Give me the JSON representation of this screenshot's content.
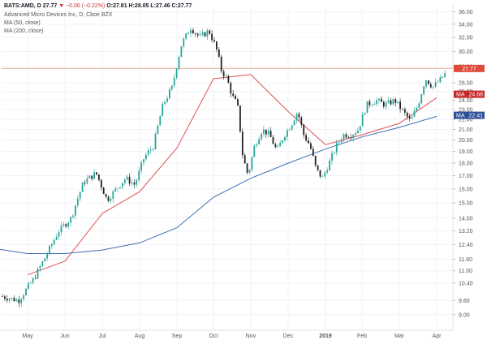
{
  "header": {
    "symbol": "BATS:AMD, D",
    "last": "27.77",
    "change": "▼ −0.06 (−0.22%)",
    "ohlc": "O:27.81  H:28.05  L:27.46  C:27.77",
    "description": "Advanced Micro Devices Inc, D, Cboe BZX",
    "ma_short_label": "MA (50, close)",
    "ma_long_label": "MA (200, close)"
  },
  "colors": {
    "up": "#26a69a",
    "down": "#222222",
    "ma50": "#e05050",
    "ma200": "#3f6db3",
    "price_line": "#e8b088",
    "last_tag": "#e04a3a",
    "ma50_tag": "#c62828",
    "ma200_tag": "#2f4f9a"
  },
  "chart_data": {
    "type": "candlestick",
    "x_tick_labels": [
      "May",
      "Jun",
      "Jul",
      "Aug",
      "Sep",
      "Oct",
      "Nov",
      "Dec",
      "2019",
      "Feb",
      "Mar",
      "Apr"
    ],
    "y_tick_labels": [
      "9.00",
      "9.60",
      "10.40",
      "11.00",
      "11.60",
      "12.40",
      "13.20",
      "14.00",
      "15.00",
      "16.00",
      "17.00",
      "18.00",
      "19.00",
      "20.00",
      "21.00",
      "22.00",
      "23.00",
      "24.00",
      "25.00",
      "26.00",
      "28.00",
      "30.00",
      "32.00",
      "34.00",
      "36.00"
    ],
    "ylim": [
      8.6,
      36.6
    ],
    "y_scale": "log",
    "last_price": 27.77,
    "last_price_label": "27.77",
    "ma_tags": [
      {
        "label": "MA",
        "value": 24.68,
        "value_label": "24.68",
        "series": "ma50"
      },
      {
        "label": "MA",
        "value": 22.41,
        "value_label": "22.41",
        "series": "ma200"
      }
    ],
    "price_path": [
      {
        "month": "Apr 2018",
        "price": 9.8
      },
      {
        "month": "Apr 2018",
        "price": 9.6
      },
      {
        "month": "May 2018",
        "price": 10.6
      },
      {
        "month": "May 2018",
        "price": 11.8
      },
      {
        "month": "May 2018",
        "price": 13.2
      },
      {
        "month": "Jun 2018",
        "price": 14.0
      },
      {
        "month": "Jun 2018",
        "price": 16.5
      },
      {
        "month": "Jun 2018",
        "price": 17.2
      },
      {
        "month": "Jul 2018",
        "price": 15.2
      },
      {
        "month": "Jul 2018",
        "price": 16.0
      },
      {
        "month": "Jul 2018",
        "price": 16.8
      },
      {
        "month": "Jul 2018",
        "price": 16.3
      },
      {
        "month": "Aug 2018",
        "price": 18.5
      },
      {
        "month": "Aug 2018",
        "price": 19.5
      },
      {
        "month": "Aug 2018",
        "price": 23.5
      },
      {
        "month": "Aug 2018",
        "price": 25.5
      },
      {
        "month": "Sep 2018",
        "price": 31.0
      },
      {
        "month": "Sep 2018",
        "price": 33.5
      },
      {
        "month": "Sep 2018",
        "price": 32.0
      },
      {
        "month": "Sep 2018",
        "price": 33.0
      },
      {
        "month": "Oct 2018",
        "price": 30.5
      },
      {
        "month": "Oct 2018",
        "price": 27.5
      },
      {
        "month": "Oct 2018",
        "price": 26.5
      },
      {
        "month": "Oct 2018",
        "price": 24.5
      },
      {
        "month": "Oct 2018",
        "price": 23.5
      },
      {
        "month": "Oct 2018",
        "price": 18.5
      },
      {
        "month": "Oct 2018",
        "price": 17.0
      },
      {
        "month": "Nov 2018",
        "price": 19.5
      },
      {
        "month": "Nov 2018",
        "price": 21.0
      },
      {
        "month": "Nov 2018",
        "price": 20.5
      },
      {
        "month": "Nov 2018",
        "price": 19.0
      },
      {
        "month": "Nov 2018",
        "price": 20.5
      },
      {
        "month": "Dec 2018",
        "price": 21.5
      },
      {
        "month": "Dec 2018",
        "price": 22.8
      },
      {
        "month": "Dec 2018",
        "price": 20.5
      },
      {
        "month": "Dec 2018",
        "price": 19.5
      },
      {
        "month": "Dec 2018",
        "price": 17.5
      },
      {
        "month": "Dec 2018",
        "price": 16.8
      },
      {
        "month": "Jan 2019",
        "price": 18.0
      },
      {
        "month": "Jan 2019",
        "price": 19.5
      },
      {
        "month": "Jan 2019",
        "price": 20.5
      },
      {
        "month": "Jan 2019",
        "price": 20.5
      },
      {
        "month": "Jan 2019",
        "price": 21.0
      },
      {
        "month": "Feb 2019",
        "price": 23.5
      },
      {
        "month": "Feb 2019",
        "price": 24.0
      },
      {
        "month": "Feb 2019",
        "price": 23.5
      },
      {
        "month": "Feb 2019",
        "price": 24.0
      },
      {
        "month": "Mar 2019",
        "price": 22.8
      },
      {
        "month": "Mar 2019",
        "price": 21.8
      },
      {
        "month": "Mar 2019",
        "price": 23.5
      },
      {
        "month": "Mar 2019",
        "price": 26.5
      },
      {
        "month": "Mar 2019",
        "price": 25.5
      },
      {
        "month": "Apr 2019",
        "price": 26.5
      },
      {
        "month": "Apr 2019",
        "price": 28.0
      },
      {
        "month": "Apr 2019",
        "price": 28.8
      },
      {
        "month": "Apr 2019",
        "price": 27.8
      }
    ],
    "series": [
      {
        "key": "ma50",
        "name": "MA (50, close)",
        "values": [
          {
            "month": "May 2018",
            "value": 10.8
          },
          {
            "month": "Jun 2018",
            "value": 11.5
          },
          {
            "month": "Jul 2018",
            "value": 14.3
          },
          {
            "month": "Aug 2018",
            "value": 15.8
          },
          {
            "month": "Sep 2018",
            "value": 19.3
          },
          {
            "month": "Oct 2018",
            "value": 26.5
          },
          {
            "month": "Nov 2018",
            "value": 27.0
          },
          {
            "month": "Dec 2018",
            "value": 22.8
          },
          {
            "month": "Jan 2019",
            "value": 19.6
          },
          {
            "month": "Feb 2019",
            "value": 20.5
          },
          {
            "month": "Mar 2019",
            "value": 21.6
          },
          {
            "month": "Apr 2019",
            "value": 24.3
          }
        ]
      },
      {
        "key": "ma200",
        "name": "MA (200, close)",
        "values": [
          {
            "month": "Apr 2018",
            "value": 12.2
          },
          {
            "month": "May 2018",
            "value": 11.9
          },
          {
            "month": "Jun 2018",
            "value": 11.9
          },
          {
            "month": "Jul 2018",
            "value": 12.1
          },
          {
            "month": "Aug 2018",
            "value": 12.5
          },
          {
            "month": "Sep 2018",
            "value": 13.4
          },
          {
            "month": "Oct 2018",
            "value": 15.4
          },
          {
            "month": "Nov 2018",
            "value": 16.8
          },
          {
            "month": "Dec 2018",
            "value": 18.0
          },
          {
            "month": "Jan 2019",
            "value": 19.2
          },
          {
            "month": "Feb 2019",
            "value": 20.3
          },
          {
            "month": "Mar 2019",
            "value": 21.2
          },
          {
            "month": "Apr 2019",
            "value": 22.3
          }
        ]
      }
    ]
  }
}
